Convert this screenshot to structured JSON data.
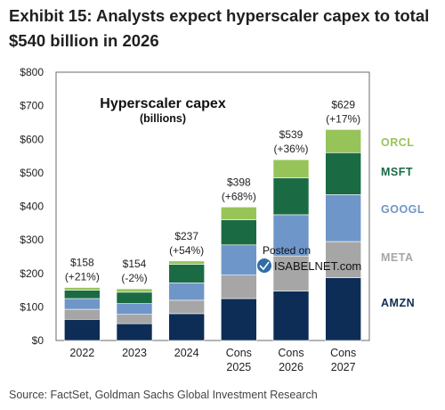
{
  "header": {
    "title_line1": "Exhibit 15: Analysts expect hyperscaler capex to total",
    "title_line2": "$540 billion in 2026"
  },
  "footer": {
    "source": "Source: FactSet, Goldman Sachs Global Investment Research"
  },
  "watermark": {
    "line1": "Posted on",
    "line2": "ISABELNET.com"
  },
  "chart_data": {
    "type": "bar",
    "stacked": true,
    "title": "Hyperscaler capex",
    "subtitle": "(billions)",
    "categories": [
      [
        "2022"
      ],
      [
        "2023"
      ],
      [
        "2024"
      ],
      [
        "Cons",
        "2025"
      ],
      [
        "Cons",
        "2026"
      ],
      [
        "Cons",
        "2027"
      ]
    ],
    "yticks": [
      "$0",
      "$100",
      "$200",
      "$300",
      "$400",
      "$500",
      "$600",
      "$700",
      "$800"
    ],
    "ylim": [
      0,
      800
    ],
    "grid": false,
    "legend_placement": "right",
    "series": [
      {
        "name": "AMZN",
        "color": "#0d2d57",
        "values": [
          63,
          50,
          80,
          125,
          147,
          187
        ]
      },
      {
        "name": "META",
        "color": "#a6a6a6",
        "values": [
          30,
          28,
          40,
          70,
          105,
          108
        ]
      },
      {
        "name": "GOOGL",
        "color": "#6f96c9",
        "values": [
          32,
          32,
          52,
          90,
          123,
          140
        ]
      },
      {
        "name": "MSFT",
        "color": "#1a6b43",
        "values": [
          25,
          34,
          55,
          75,
          110,
          125
        ]
      },
      {
        "name": "ORCL",
        "color": "#97c459",
        "values": [
          8,
          10,
          10,
          38,
          54,
          69
        ]
      }
    ],
    "totals": [
      "$158",
      "$154",
      "$237",
      "$398",
      "$539",
      "$629"
    ],
    "growth": [
      "(+21%)",
      "(-2%)",
      "(+54%)",
      "(+68%)",
      "(+36%)",
      "(+17%)"
    ]
  }
}
